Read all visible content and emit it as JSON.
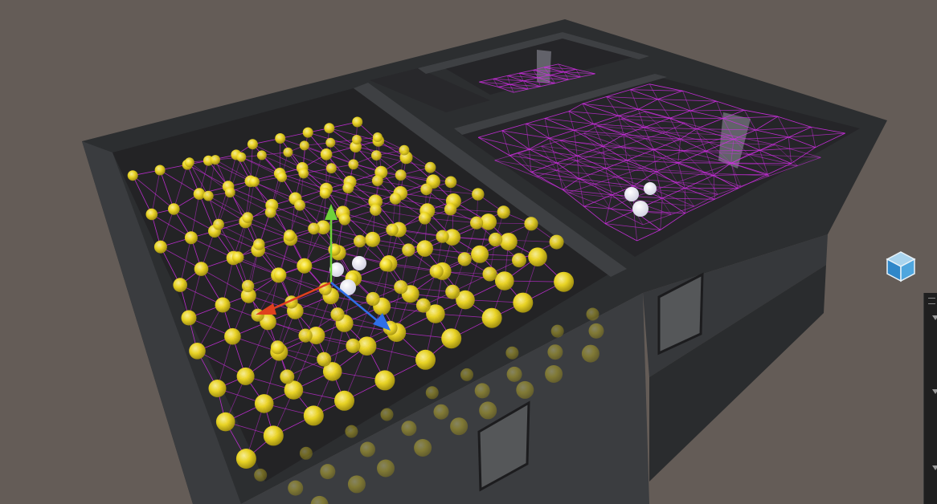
{
  "scene": {
    "name": "3D scene view",
    "background_color": "#645c57",
    "wall_color": "#2f3133",
    "floor_color": "#35373a",
    "probe_color": "#f2dc24",
    "connection_color": "#d22ee6",
    "light_color": "#ffffff"
  },
  "transform_gizmo": {
    "x_axis_color": "#e0401e",
    "y_axis_color": "#6fd23a",
    "z_axis_color": "#2f6fe8"
  },
  "icons": {
    "view_orientation": "view-cube-icon",
    "panel_collapse": "chevron-down-icon",
    "panel_grip": "drag-handle-icon"
  }
}
